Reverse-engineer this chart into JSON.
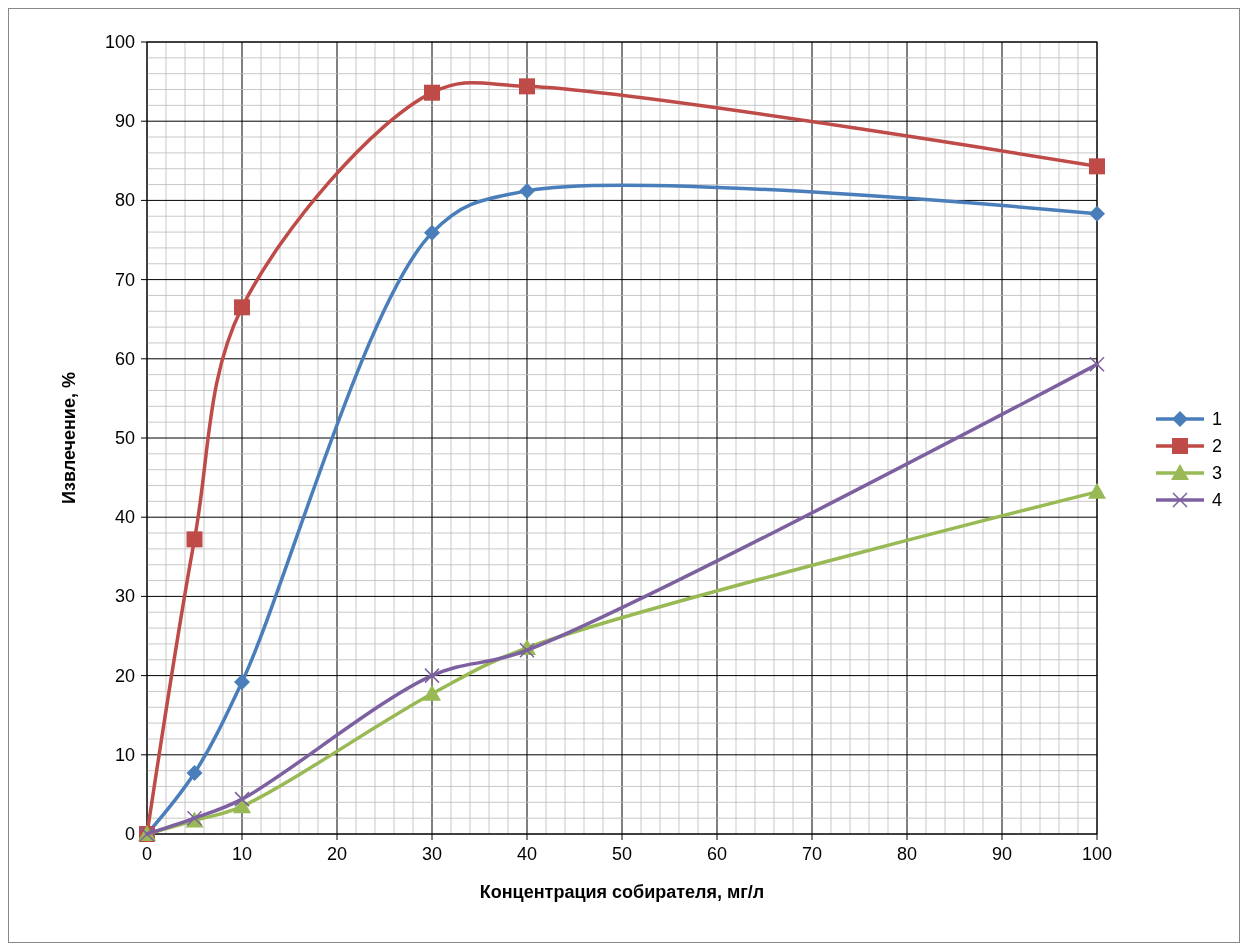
{
  "chart_data": {
    "type": "line",
    "xlabel": "Концентрация  собирателя, мг/л",
    "ylabel": "Извлечение, %",
    "xlim": [
      0,
      100
    ],
    "ylim": [
      0,
      100
    ],
    "xticks": [
      0,
      {
        "value": 2,
        "label": null
      },
      {
        "value": 4,
        "label": null
      },
      {
        "value": 6,
        "label": null
      },
      {
        "value": 8,
        "label": null
      },
      10,
      {
        "value": 12,
        "label": null
      },
      {
        "value": 14,
        "label": null
      },
      {
        "value": 16,
        "label": null
      },
      {
        "value": 18,
        "label": null
      },
      20,
      {
        "value": 22,
        "label": null
      },
      {
        "value": 24,
        "label": null
      },
      {
        "value": 26,
        "label": null
      },
      {
        "value": 28,
        "label": null
      },
      30,
      {
        "value": 32,
        "label": null
      },
      {
        "value": 34,
        "label": null
      },
      {
        "value": 36,
        "label": null
      },
      {
        "value": 38,
        "label": null
      },
      40,
      {
        "value": 42,
        "label": null
      },
      {
        "value": 44,
        "label": null
      },
      {
        "value": 46,
        "label": null
      },
      {
        "value": 48,
        "label": null
      },
      50,
      {
        "value": 52,
        "label": null
      },
      {
        "value": 54,
        "label": null
      },
      {
        "value": 56,
        "label": null
      },
      {
        "value": 58,
        "label": null
      },
      60,
      {
        "value": 62,
        "label": null
      },
      {
        "value": 64,
        "label": null
      },
      {
        "value": 66,
        "label": null
      },
      {
        "value": 68,
        "label": null
      },
      70,
      {
        "value": 72,
        "label": null
      },
      {
        "value": 74,
        "label": null
      },
      {
        "value": 76,
        "label": null
      },
      {
        "value": 78,
        "label": null
      },
      80,
      {
        "value": 82,
        "label": null
      },
      {
        "value": 84,
        "label": null
      },
      {
        "value": 86,
        "label": null
      },
      {
        "value": 88,
        "label": null
      },
      90,
      {
        "value": 92,
        "label": null
      },
      {
        "value": 94,
        "label": null
      },
      {
        "value": 96,
        "label": null
      },
      {
        "value": 98,
        "label": null
      },
      100
    ],
    "yticks": [
      0,
      {
        "value": 2,
        "label": null
      },
      {
        "value": 4,
        "label": null
      },
      {
        "value": 6,
        "label": null
      },
      {
        "value": 8,
        "label": null
      },
      10,
      {
        "value": 12,
        "label": null
      },
      {
        "value": 14,
        "label": null
      },
      {
        "value": 16,
        "label": null
      },
      {
        "value": 18,
        "label": null
      },
      20,
      {
        "value": 22,
        "label": null
      },
      {
        "value": 24,
        "label": null
      },
      {
        "value": 26,
        "label": null
      },
      {
        "value": 28,
        "label": null
      },
      30,
      {
        "value": 32,
        "label": null
      },
      {
        "value": 34,
        "label": null
      },
      {
        "value": 36,
        "label": null
      },
      {
        "value": 38,
        "label": null
      },
      40,
      {
        "value": 42,
        "label": null
      },
      {
        "value": 44,
        "label": null
      },
      {
        "value": 46,
        "label": null
      },
      {
        "value": 48,
        "label": null
      },
      50,
      {
        "value": 52,
        "label": null
      },
      {
        "value": 54,
        "label": null
      },
      {
        "value": 56,
        "label": null
      },
      {
        "value": 58,
        "label": null
      },
      60,
      {
        "value": 62,
        "label": null
      },
      {
        "value": 64,
        "label": null
      },
      {
        "value": 66,
        "label": null
      },
      {
        "value": 68,
        "label": null
      },
      70,
      {
        "value": 72,
        "label": null
      },
      {
        "value": 74,
        "label": null
      },
      {
        "value": 76,
        "label": null
      },
      {
        "value": 78,
        "label": null
      },
      80,
      {
        "value": 82,
        "label": null
      },
      {
        "value": 84,
        "label": null
      },
      {
        "value": 86,
        "label": null
      },
      {
        "value": 88,
        "label": null
      },
      90,
      {
        "value": 92,
        "label": null
      },
      {
        "value": 94,
        "label": null
      },
      {
        "value": 96,
        "label": null
      },
      {
        "value": 98,
        "label": null
      },
      100
    ],
    "grid": true,
    "legend": "right",
    "line_style": "solid",
    "x": [
      0,
      5,
      10,
      30,
      40,
      100
    ],
    "series": [
      {
        "name": "1",
        "color": "#4a7ebb",
        "marker": "diamond",
        "values": [
          0,
          7.7,
          19.2,
          75.9,
          81.2,
          78.3
        ]
      },
      {
        "name": "2",
        "color": "#be4b48",
        "marker": "square",
        "values": [
          0,
          37.2,
          66.5,
          93.6,
          94.4,
          84.3
        ]
      },
      {
        "name": "3",
        "color": "#98b954",
        "marker": "triangle",
        "values": [
          0,
          1.7,
          3.5,
          17.7,
          23.5,
          43.2
        ]
      },
      {
        "name": "4",
        "color": "#7d60a0",
        "marker": "cross",
        "values": [
          0,
          2.0,
          4.4,
          20.0,
          23.2,
          59.3
        ]
      }
    ]
  }
}
